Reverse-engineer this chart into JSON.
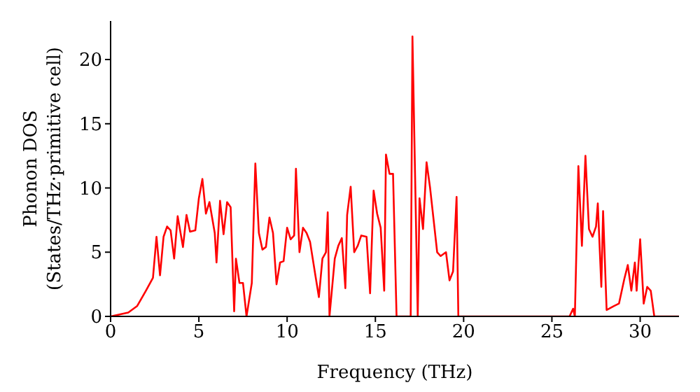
{
  "chart_data": {
    "type": "line",
    "xlabel": "Frequency (THz)",
    "ylabel": "Phonon DOS\n(States/THz·primitive cell)",
    "xlim": [
      0,
      32.2
    ],
    "ylim": [
      0,
      23
    ],
    "xticks": [
      0,
      5,
      10,
      15,
      20,
      25,
      30
    ],
    "yticks": [
      0,
      5,
      10,
      15,
      20
    ],
    "grid": false,
    "legend": false,
    "marker": "none",
    "line_style": "solid",
    "series": [
      {
        "color": "#ff0000",
        "x": [
          0,
          1,
          1.5,
          2,
          2.4,
          2.6,
          2.8,
          3.0,
          3.2,
          3.4,
          3.6,
          3.8,
          4.1,
          4.3,
          4.5,
          4.8,
          5.0,
          5.2,
          5.4,
          5.6,
          5.9,
          6.0,
          6.2,
          6.4,
          6.6,
          6.8,
          7.0,
          7.1,
          7.3,
          7.5,
          7.7,
          8.0,
          8.2,
          8.4,
          8.6,
          8.8,
          9.0,
          9.2,
          9.4,
          9.6,
          9.8,
          10.0,
          10.2,
          10.4,
          10.5,
          10.7,
          10.9,
          11.1,
          11.3,
          11.6,
          11.8,
          12.0,
          12.2,
          12.3,
          12.4,
          12.7,
          12.9,
          13.1,
          13.3,
          13.4,
          13.6,
          13.8,
          14.0,
          14.2,
          14.5,
          14.7,
          14.9,
          15.1,
          15.3,
          15.5,
          15.6,
          15.8,
          16.0,
          16.2,
          17.0,
          17.1,
          17.4,
          17.5,
          17.7,
          17.9,
          18.1,
          18.3,
          18.5,
          18.7,
          19.0,
          19.2,
          19.4,
          19.6,
          19.7,
          26.0,
          26.2,
          26.3,
          26.5,
          26.7,
          26.9,
          27.1,
          27.3,
          27.5,
          27.6,
          27.8,
          27.9,
          28.1,
          28.5,
          28.8,
          29.1,
          29.3,
          29.5,
          29.7,
          29.8,
          30.0,
          30.2,
          30.4,
          30.6,
          30.8,
          32.2
        ],
        "values": [
          0,
          0.3,
          0.8,
          2,
          3,
          6.2,
          3.2,
          6.2,
          7,
          6.7,
          4.5,
          7.8,
          5.4,
          7.9,
          6.6,
          6.7,
          9.2,
          10.7,
          8,
          8.9,
          6.5,
          4.2,
          9,
          6.4,
          8.9,
          8.5,
          0.4,
          4.5,
          2.6,
          2.6,
          0,
          2.6,
          11.9,
          6.5,
          5.2,
          5.4,
          7.7,
          6.5,
          2.5,
          4.2,
          4.3,
          6.9,
          6,
          6.3,
          11.5,
          5,
          6.9,
          6.5,
          5.8,
          3.2,
          1.5,
          4.5,
          5,
          8.1,
          0,
          4.5,
          5.5,
          6.1,
          2.2,
          7.9,
          10.1,
          5,
          5.5,
          6.3,
          6.2,
          1.8,
          9.8,
          8,
          6.9,
          2,
          12.6,
          11.1,
          11.1,
          0,
          0,
          21.8,
          0,
          9.2,
          6.8,
          12,
          10,
          7.5,
          5,
          4.7,
          5,
          2.8,
          3.5,
          9.3,
          0,
          0,
          0.6,
          0,
          11.7,
          5.5,
          12.5,
          6.8,
          6.2,
          7,
          8.8,
          2.3,
          8.2,
          0.5,
          0.8,
          1,
          2.9,
          4,
          2,
          4.2,
          2,
          6,
          1,
          2.3,
          2,
          0,
          0
        ]
      }
    ]
  }
}
